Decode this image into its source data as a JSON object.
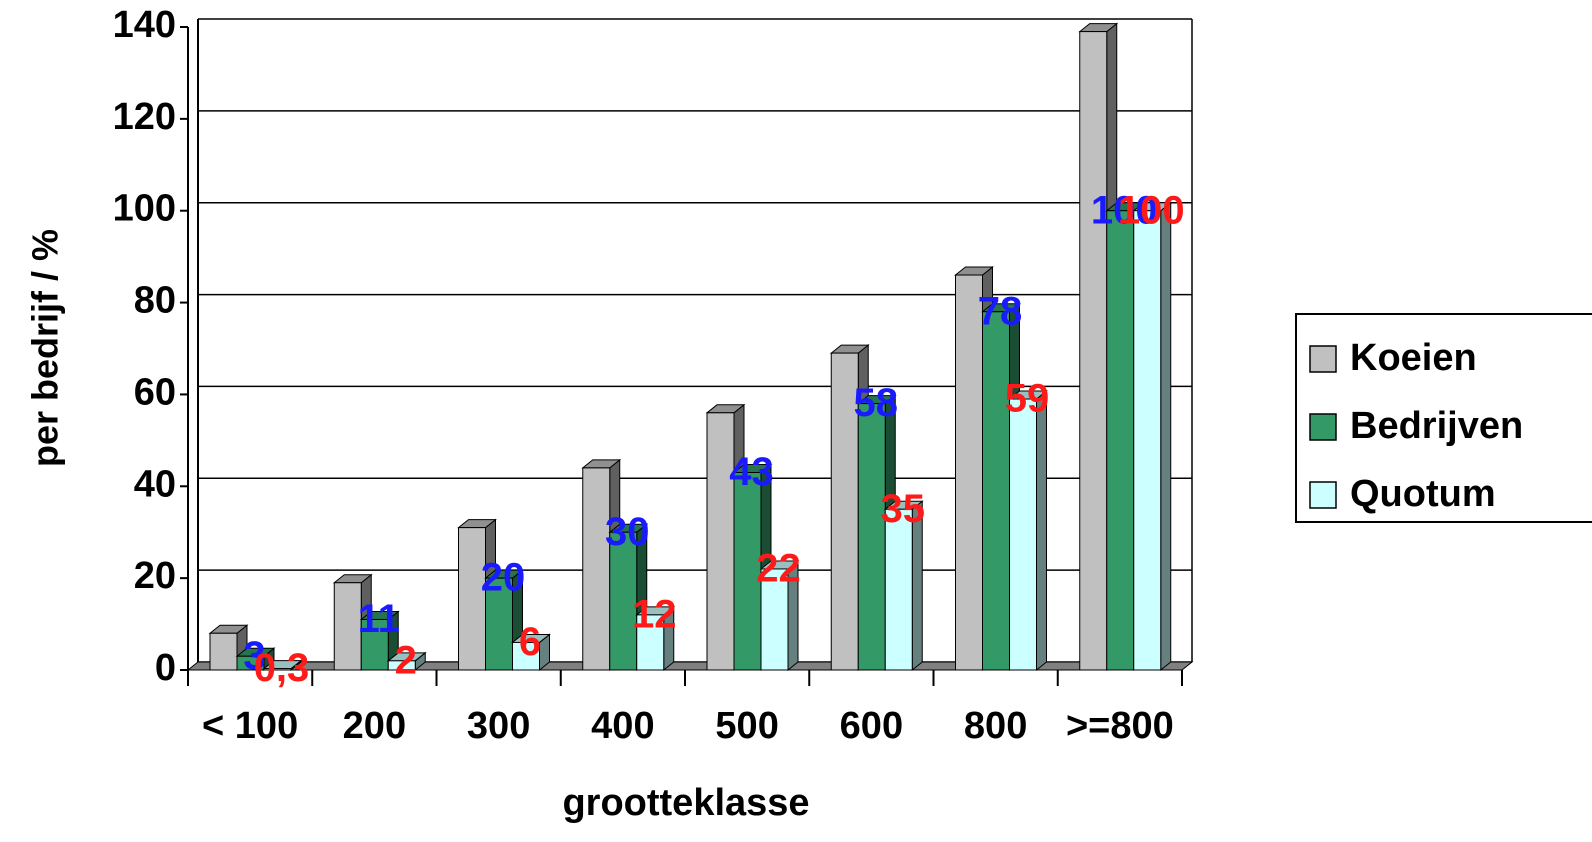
{
  "chart_data": {
    "type": "bar3d",
    "y_label": "per bedrijf / %",
    "x_label": "grootteklasse",
    "categories": [
      "< 100",
      "200",
      "300",
      "400",
      "500",
      "600",
      "800",
      ">=800"
    ],
    "series": [
      {
        "name": "Koeien",
        "color": "#c0c0c0",
        "values": [
          8,
          19,
          31,
          44,
          56,
          69,
          86,
          139
        ]
      },
      {
        "name": "Bedrijven",
        "color": "#339966",
        "label_color": "#1a1aff",
        "values": [
          3,
          11,
          20,
          30,
          43,
          58,
          78,
          100
        ],
        "value_labels": [
          "3",
          "11",
          "20",
          "30",
          "43",
          "58",
          "78",
          "100"
        ]
      },
      {
        "name": "Quotum",
        "color": "#ccffff",
        "label_color": "#ff1a1a",
        "values": [
          0.3,
          2,
          6,
          12,
          22,
          35,
          59,
          100
        ],
        "value_labels": [
          "0,3",
          "2",
          "6",
          "12",
          "22",
          "35",
          "59",
          "100"
        ]
      }
    ],
    "ylim": [
      0,
      140
    ],
    "yticks": [
      0,
      20,
      40,
      60,
      80,
      100,
      120,
      140
    ],
    "grid": true,
    "legend": "right"
  }
}
